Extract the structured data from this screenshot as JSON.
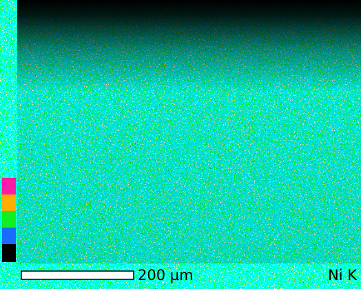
{
  "scale_bar": {
    "label": "200 µm"
  },
  "element_label": "Ni K"
}
